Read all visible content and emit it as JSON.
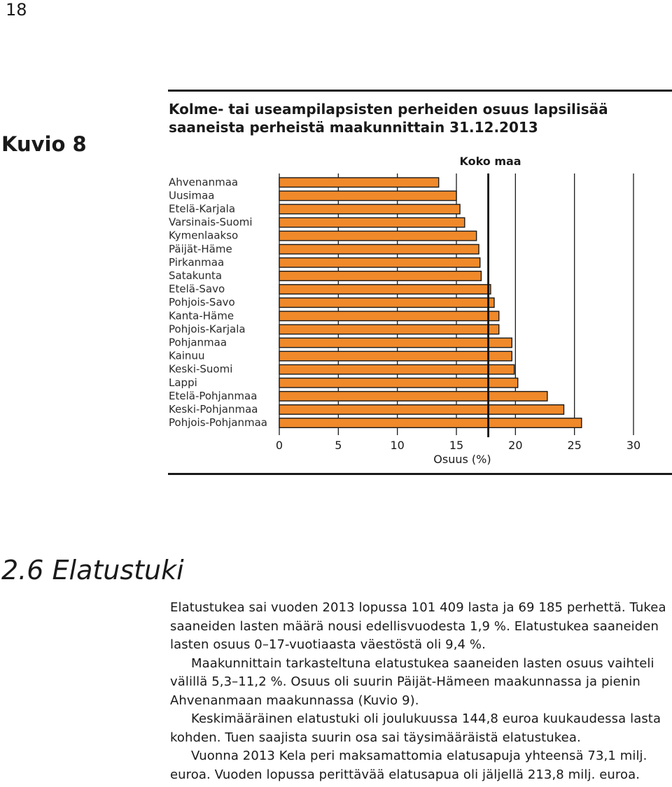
{
  "page": {
    "number": "18"
  },
  "figure": {
    "label": "Kuvio 8",
    "title": "Kolme- tai useampilapsisten perheiden osuus lapsilisää saaneista perheistä maakunnittain 31.12.2013"
  },
  "chart_data": {
    "type": "bar",
    "orientation": "horizontal",
    "categories": [
      "Ahvenanmaa",
      "Uusimaa",
      "Etelä-Karjala",
      "Varsinais-Suomi",
      "Kymenlaakso",
      "Päijät-Häme",
      "Pirkanmaa",
      "Satakunta",
      "Etelä-Savo",
      "Pohjois-Savo",
      "Kanta-Häme",
      "Pohjois-Karjala",
      "Pohjanmaa",
      "Kainuu",
      "Keski-Suomi",
      "Lappi",
      "Etelä-Pohjanmaa",
      "Keski-Pohjanmaa",
      "Pohjois-Pohjanmaa"
    ],
    "values": [
      13.5,
      15.0,
      15.3,
      15.7,
      16.7,
      16.9,
      17.0,
      17.1,
      17.9,
      18.2,
      18.6,
      18.6,
      19.7,
      19.7,
      19.9,
      20.2,
      22.7,
      24.1,
      25.6
    ],
    "xlabel": "Osuus (%)",
    "xticks": [
      "0",
      "5",
      "10",
      "15",
      "20",
      "25",
      "30"
    ],
    "xlim": [
      0,
      30
    ],
    "reference": {
      "label": "Koko maa",
      "value": 17.7
    },
    "bar_color": "#f0892a",
    "bar_outline": "#1a1a1a",
    "grid": true
  },
  "section": {
    "heading": "2.6 Elatustuki",
    "paragraphs": [
      "Elatustukea sai vuoden 2013 lopussa 101 409 lasta ja 69 185 perhettä. Tukea saaneiden lasten määrä nousi edellisvuodesta 1,9 %. Elatustukea saaneiden lasten osuus 0–17-vuotiaasta väestöstä oli 9,4 %.",
      "Maakunnittain tarkasteltuna elatustukea saaneiden lasten osuus vaihteli välillä 5,3–11,2 %. Osuus oli suurin Päijät-Hämeen maakunnassa ja pienin Ahvenanmaan maakunnassa (Kuvio 9).",
      "Keskimääräinen elatustuki oli joulukuussa 144,8 euroa kuukaudessa lasta kohden. Tuen saajista suurin osa sai täysimääräistä elatustukea.",
      "Vuonna 2013 Kela peri maksamattomia elatusapuja yhteensä 73,1 milj. euroa. Vuoden lopussa perittävää elatusapua oli jäljellä 213,8 milj. euroa."
    ]
  }
}
